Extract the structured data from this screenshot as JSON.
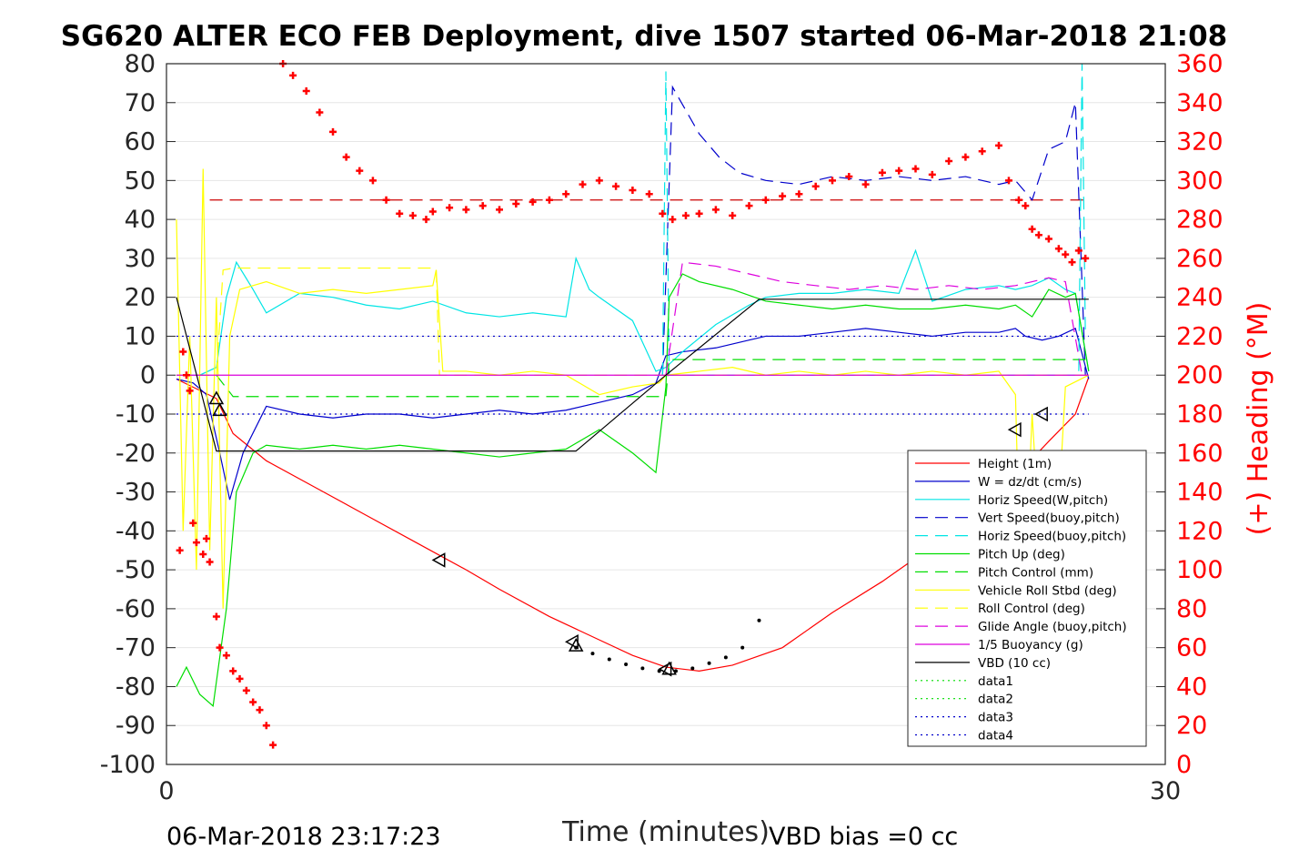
{
  "chart_data": {
    "type": "line",
    "title": "SG620 ALTER ECO FEB Deployment, dive 1507 started 06-Mar-2018 21:08",
    "xlabel": "Time (minutes)",
    "ylabel_right": "(+) Heading (°M)",
    "footer_left": "06-Mar-2018 23:17:23",
    "footer_right": "VBD bias =0 cc",
    "xlim": [
      0,
      30
    ],
    "ylim_left": [
      -100,
      80
    ],
    "ylim_right": [
      0,
      360
    ],
    "x_ticks": [
      0,
      30
    ],
    "y_ticks_left": [
      80,
      70,
      60,
      50,
      40,
      30,
      20,
      10,
      0,
      -10,
      -20,
      -30,
      -40,
      -50,
      -60,
      -70,
      -80,
      -90,
      -100
    ],
    "y_ticks_right": [
      360,
      340,
      320,
      300,
      280,
      260,
      240,
      220,
      200,
      180,
      160,
      140,
      120,
      100,
      80,
      60,
      40,
      20,
      0
    ],
    "grid": true,
    "legend_position": "lower-right",
    "series": [
      {
        "name": "Height (1m)",
        "color": "#ff0000",
        "style": "solid",
        "x": [
          0.3,
          1.5,
          2.0,
          3.0,
          4.5,
          6.0,
          7.5,
          9.0,
          10.0,
          11.5,
          13.0,
          14.0,
          15.0,
          16.0,
          17.0,
          18.5,
          20.0,
          21.5,
          23.0,
          24.5,
          25.5,
          26.5,
          27.3,
          27.7
        ],
        "y": [
          -1,
          -6,
          -15,
          -22,
          -29,
          -36,
          -43,
          -50,
          -55,
          -62,
          -68,
          -72,
          -75,
          -76,
          -74.5,
          -70,
          -61,
          -53,
          -44,
          -33,
          -26,
          -17,
          -10,
          -0.5
        ]
      },
      {
        "name": "W = dz/dt (cm/s)",
        "color": "#0000cc",
        "style": "solid",
        "x": [
          0.3,
          0.8,
          1.2,
          1.6,
          1.9,
          2.3,
          3.0,
          4.0,
          5.0,
          6.0,
          7.0,
          8.0,
          9.0,
          10.0,
          11.0,
          12.0,
          13.0,
          14.0,
          14.7,
          15.0,
          15.5,
          16.5,
          17.5,
          18.0,
          19.0,
          20.0,
          21.0,
          22.0,
          23.0,
          24.0,
          25.0,
          25.5,
          25.8,
          26.3,
          26.8,
          27.3,
          27.7
        ],
        "y": [
          -1,
          -2,
          -5,
          -20,
          -32,
          -20,
          -8,
          -10,
          -11,
          -10,
          -10,
          -11,
          -10,
          -9,
          -10,
          -9,
          -7,
          -5,
          -2,
          5,
          6,
          7,
          9,
          10,
          10,
          11,
          12,
          11,
          10,
          11,
          11,
          12,
          10,
          9,
          10,
          12,
          -1
        ]
      },
      {
        "name": "Horiz Speed(W,pitch)",
        "color": "#00e5e5",
        "style": "solid",
        "x": [
          0.3,
          1.0,
          1.5,
          1.8,
          2.1,
          2.6,
          3.0,
          4.0,
          5.0,
          6.0,
          7.0,
          8.0,
          9.0,
          10.0,
          11.0,
          12.0,
          12.3,
          12.7,
          13.0,
          14.0,
          14.7,
          15.0,
          15.5,
          16.5,
          17.5,
          18.0,
          19.0,
          20.0,
          21.0,
          22.0,
          22.5,
          23.0,
          24.0,
          25.0,
          25.5,
          26.0,
          26.5,
          27.0,
          27.3,
          27.7
        ],
        "y": [
          0,
          0,
          2,
          20,
          29,
          22,
          16,
          21,
          20,
          18,
          17,
          19,
          16,
          15,
          16,
          15,
          30,
          22,
          20,
          14,
          1,
          2,
          6,
          13,
          18,
          20,
          21,
          21,
          22,
          21,
          32,
          19,
          22,
          23,
          22,
          23,
          25,
          22,
          21,
          1
        ]
      },
      {
        "name": "Vert Speed(buoy,pitch)",
        "color": "#0000cc",
        "style": "dashed",
        "x": [
          14.9,
          15.2,
          15.6,
          16.0,
          16.6,
          17.2,
          18.0,
          19.0,
          20.0,
          21.0,
          22.0,
          23.0,
          24.0,
          25.0,
          25.5,
          26.0,
          26.5,
          27.0,
          27.3,
          27.6
        ],
        "y": [
          0,
          74,
          68,
          62,
          56,
          52,
          50,
          49,
          51,
          50,
          51,
          50,
          51,
          49,
          50,
          45,
          58,
          60,
          70,
          0
        ]
      },
      {
        "name": "Horiz Speed(buoy,pitch)",
        "color": "#00e5e5",
        "style": "dashed",
        "x": [
          14.9,
          15.0,
          15.1,
          27.4,
          27.5,
          27.6
        ],
        "y": [
          0,
          78,
          0,
          0,
          80,
          10
        ]
      },
      {
        "name": "Pitch Up (deg)",
        "color": "#00dd00",
        "style": "solid",
        "x": [
          0.3,
          0.6,
          1.0,
          1.4,
          1.8,
          2.1,
          2.6,
          3.0,
          4.0,
          5.0,
          6.0,
          7.0,
          8.0,
          9.0,
          10.0,
          11.0,
          12.0,
          13.0,
          14.0,
          14.7,
          15.0,
          15.1,
          15.5,
          16.0,
          17.0,
          18.0,
          19.0,
          20.0,
          21.0,
          22.0,
          23.0,
          24.0,
          25.0,
          25.5,
          26.0,
          26.5,
          27.0,
          27.3,
          27.7
        ],
        "y": [
          -80,
          -75,
          -82,
          -85,
          -60,
          -30,
          -20,
          -18,
          -19,
          -18,
          -19,
          -18,
          -19,
          -20,
          -21,
          -20,
          -19,
          -14,
          -20,
          -25,
          -3,
          20,
          26,
          24,
          22,
          19,
          18,
          17,
          18,
          17,
          17,
          18,
          17,
          18,
          15,
          22,
          20,
          21,
          1
        ]
      },
      {
        "name": "Pitch Control (mm)",
        "color": "#00dd00",
        "style": "dashed",
        "x": [
          0.3,
          1.5,
          2.0,
          15.0,
          15.1,
          27.7
        ],
        "y": [
          0,
          0,
          -5.5,
          -5.5,
          4,
          4
        ]
      },
      {
        "name": "Vehicle Roll Stbd (deg)",
        "color": "#ffff00",
        "style": "solid",
        "x": [
          0.3,
          0.5,
          0.7,
          0.9,
          1.1,
          1.3,
          1.5,
          1.7,
          1.9,
          2.2,
          3.0,
          4.0,
          5.0,
          6.0,
          7.0,
          8.0,
          8.1,
          8.3,
          9.0,
          10.0,
          11.0,
          12.0,
          13.0,
          14.0,
          14.8,
          15.0,
          16.0,
          17.0,
          18.0,
          19.0,
          20.0,
          21.0,
          22.0,
          23.0,
          24.0,
          25.0,
          25.5,
          25.7,
          26.0,
          26.5,
          27.0,
          27.7
        ],
        "y": [
          40,
          -40,
          10,
          -50,
          53,
          -45,
          20,
          -60,
          10,
          22,
          24,
          21,
          22,
          21,
          22,
          23,
          27,
          1,
          1,
          0,
          1,
          0,
          -5,
          -3,
          -2,
          0,
          1,
          2,
          0,
          1,
          0,
          1,
          0,
          1,
          0,
          1,
          -5,
          -70,
          -10,
          -80,
          -3,
          0
        ]
      },
      {
        "name": "Roll Control (deg)",
        "color": "#ffff00",
        "style": "dashed",
        "x": [
          0.3,
          1.5,
          1.7,
          2.0,
          8.1,
          8.2,
          15.0,
          27.7
        ],
        "y": [
          0,
          0,
          27,
          27.5,
          27.5,
          0,
          0,
          0
        ]
      },
      {
        "name": "Glide Angle (buoy,pitch)",
        "color": "#dd00dd",
        "style": "dashed",
        "x": [
          15.0,
          15.5,
          16.5,
          17.5,
          18.5,
          19.5,
          20.5,
          21.5,
          22.5,
          23.5,
          24.5,
          25.5,
          26.0,
          26.5,
          27.0,
          27.5
        ],
        "y": [
          0,
          29,
          28,
          26,
          24,
          23,
          22,
          23,
          22,
          23,
          22,
          23,
          24,
          25,
          24,
          0
        ]
      },
      {
        "name": "1/5 Buoyancy (g)",
        "color": "#dd00dd",
        "style": "solid",
        "x": [
          0.3,
          27.7
        ],
        "y": [
          0,
          0
        ]
      },
      {
        "name": "VBD (10 cc)",
        "color": "#000000",
        "style": "solid",
        "x": [
          0.3,
          1.5,
          12.3,
          15.0,
          17.8,
          27.7
        ],
        "y": [
          20,
          -19.5,
          -19.5,
          0,
          19.5,
          19.5
        ]
      },
      {
        "name": "data1",
        "color": "#00dd00",
        "style": "dotted",
        "x": [],
        "y": []
      },
      {
        "name": "data2",
        "color": "#00dd00",
        "style": "dotted",
        "x": [],
        "y": []
      },
      {
        "name": "data3",
        "color": "#0000cc",
        "style": "dotted",
        "x": [
          0.3,
          27.7
        ],
        "y": [
          10,
          10
        ]
      },
      {
        "name": "data4",
        "color": "#0000cc",
        "style": "dotted",
        "x": [
          0.3,
          27.7
        ],
        "y": [
          -10,
          -10
        ]
      }
    ],
    "reference_lines_right": [
      {
        "y": 290,
        "color": "#cc0000",
        "style": "dashed",
        "x": [
          1.3,
          27.7
        ]
      }
    ],
    "heading_points": {
      "color": "#ff0000",
      "axis": "right",
      "x": [
        0.5,
        0.7,
        0.9,
        1.1,
        1.3,
        0.4,
        0.6,
        0.8,
        1.2,
        1.5,
        1.6,
        1.8,
        2.0,
        2.2,
        2.4,
        2.6,
        2.8,
        3.0,
        3.2,
        3.5,
        3.8,
        4.2,
        4.6,
        5.0,
        5.4,
        5.8,
        6.2,
        6.6,
        7.0,
        7.4,
        7.8,
        8.0,
        8.5,
        9.0,
        9.5,
        10.0,
        10.5,
        11.0,
        11.5,
        12.0,
        12.5,
        13.0,
        13.5,
        14.0,
        14.5,
        14.9,
        15.2,
        15.6,
        16.0,
        16.5,
        17.0,
        17.5,
        18.0,
        18.5,
        19.0,
        19.5,
        20.0,
        20.5,
        21.0,
        21.5,
        22.0,
        22.5,
        23.0,
        23.5,
        24.0,
        24.5,
        25.0,
        25.3,
        25.6,
        25.8,
        26.0,
        26.2,
        26.5,
        26.8,
        27.0,
        27.2,
        27.4,
        27.6
      ],
      "y": [
        212,
        192,
        114,
        108,
        104,
        110,
        200,
        124,
        116,
        76,
        60,
        56,
        48,
        44,
        38,
        32,
        28,
        20,
        10,
        360,
        354,
        346,
        335,
        325,
        312,
        305,
        300,
        290,
        283,
        282,
        280,
        284,
        286,
        285,
        287,
        285,
        288,
        289,
        290,
        293,
        298,
        300,
        297,
        295,
        293,
        283,
        280,
        282,
        283,
        285,
        282,
        287,
        290,
        292,
        293,
        297,
        300,
        302,
        298,
        304,
        305,
        306,
        303,
        310,
        312,
        315,
        318,
        300,
        290,
        287,
        275,
        272,
        270,
        265,
        262,
        258,
        264,
        260
      ]
    },
    "markers": {
      "color": "#000000",
      "points": [
        {
          "x": 1.5,
          "y": -6,
          "shape": "up"
        },
        {
          "x": 1.6,
          "y": -9,
          "shape": "up"
        },
        {
          "x": 8.2,
          "y": -47.5,
          "shape": "left"
        },
        {
          "x": 12.2,
          "y": -68.5,
          "shape": "left"
        },
        {
          "x": 12.3,
          "y": -69.5,
          "shape": "up"
        },
        {
          "x": 15.0,
          "y": -75.5,
          "shape": "left"
        },
        {
          "x": 15.1,
          "y": -75.5,
          "shape": "up"
        },
        {
          "x": 25.5,
          "y": -14,
          "shape": "left"
        },
        {
          "x": 26.3,
          "y": -10,
          "shape": "left"
        }
      ]
    },
    "dotted_segment": {
      "color": "#000000",
      "x": [
        12.3,
        12.8,
        13.3,
        13.8,
        14.3,
        14.8,
        15.3,
        15.8,
        16.3,
        16.8,
        17.3,
        17.8
      ],
      "y": [
        -70,
        -71.5,
        -73,
        -74.3,
        -75.3,
        -76,
        -76,
        -75.3,
        -74,
        -72.5,
        -70,
        -63
      ]
    }
  }
}
